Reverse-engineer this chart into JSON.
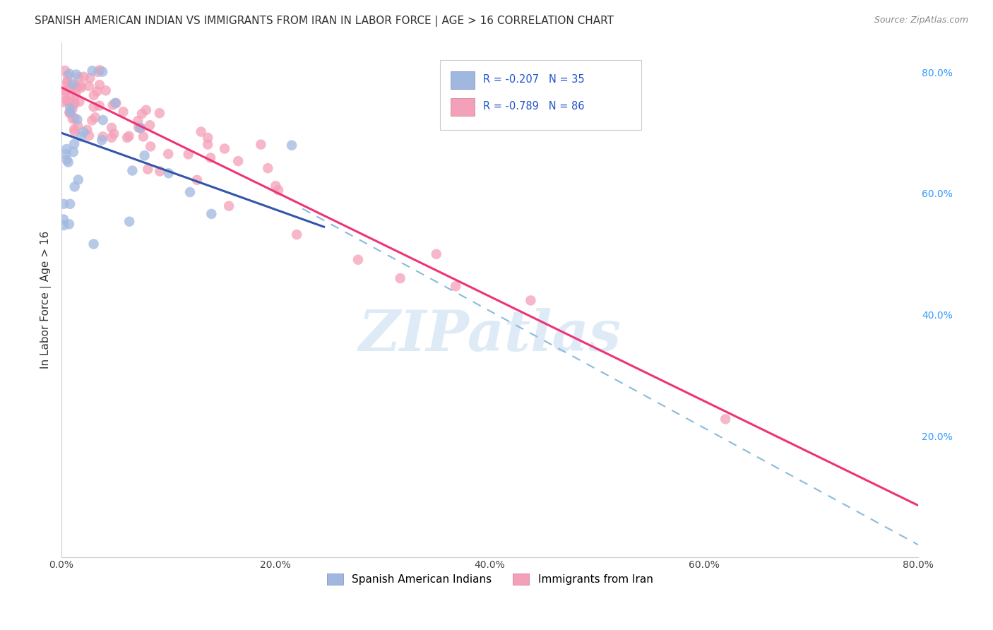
{
  "title": "SPANISH AMERICAN INDIAN VS IMMIGRANTS FROM IRAN IN LABOR FORCE | AGE > 16 CORRELATION CHART",
  "source": "Source: ZipAtlas.com",
  "ylabel": "In Labor Force | Age > 16",
  "xlim": [
    0.0,
    0.8
  ],
  "ylim": [
    0.0,
    0.85
  ],
  "xticks": [
    0.0,
    0.2,
    0.4,
    0.6,
    0.8
  ],
  "ytick_right_vals": [
    0.2,
    0.4,
    0.6,
    0.8
  ],
  "grid_color": "#d8d8d8",
  "background_color": "#ffffff",
  "blue_R": -0.207,
  "blue_N": 35,
  "pink_R": -0.789,
  "pink_N": 86,
  "blue_scatter_color": "#a0b8e0",
  "pink_scatter_color": "#f4a0b8",
  "blue_line_color": "#3355aa",
  "pink_line_color": "#ee3377",
  "dashed_line_color": "#88bbdd",
  "watermark": "ZIPatlas",
  "watermark_color": "#c8dff0",
  "legend_label_blue": "Spanish American Indians",
  "legend_label_pink": "Immigrants from Iran",
  "title_fontsize": 11,
  "source_fontsize": 9,
  "blue_line": {
    "x0": 0.0,
    "y0": 0.7,
    "x1": 0.245,
    "y1": 0.545
  },
  "pink_line": {
    "x0": 0.0,
    "y0": 0.775,
    "x1": 0.8,
    "y1": 0.085
  },
  "dash_line": {
    "x0": 0.225,
    "y0": 0.575,
    "x1": 0.8,
    "y1": 0.02
  }
}
